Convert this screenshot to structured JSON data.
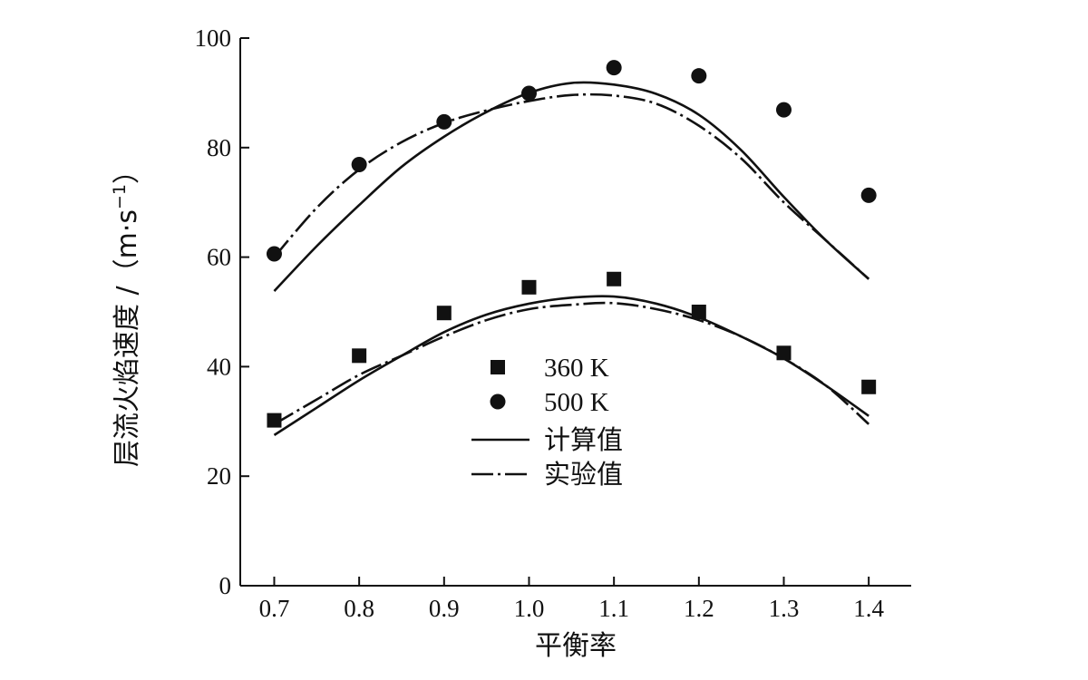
{
  "chart_data": {
    "type": "line",
    "title": "",
    "xlabel": "平衡率",
    "ylabel": {
      "main": "层流火焰速度 /（m·s",
      "sup": "−1",
      "end": "）"
    },
    "xlim": [
      0.66,
      1.45
    ],
    "ylim": [
      0,
      100
    ],
    "xticks": [
      "0.7",
      "0.8",
      "0.9",
      "1.0",
      "1.1",
      "1.2",
      "1.3",
      "1.4"
    ],
    "yticks": [
      "0",
      "20",
      "40",
      "60",
      "80",
      "100"
    ],
    "grid": false,
    "legend_position": "center",
    "legend": [
      {
        "label": "360 K",
        "kind": "square-marker"
      },
      {
        "label": "500 K",
        "kind": "circle-marker"
      },
      {
        "label": "计算值",
        "kind": "solid-line"
      },
      {
        "label": "实验值",
        "kind": "dash-dot-line"
      }
    ],
    "points": [
      {
        "name": "360 K",
        "marker": "square",
        "x": [
          0.7,
          0.8,
          0.9,
          1.0,
          1.1,
          1.2,
          1.3,
          1.4
        ],
        "y": [
          30.2,
          42.0,
          49.8,
          54.5,
          56.0,
          50.0,
          42.5,
          36.3
        ]
      },
      {
        "name": "500 K",
        "marker": "circle",
        "x": [
          0.7,
          0.8,
          0.9,
          1.0,
          1.1,
          1.2,
          1.3,
          1.4
        ],
        "y": [
          60.6,
          76.9,
          84.7,
          89.9,
          94.6,
          93.1,
          86.9,
          71.3
        ]
      }
    ],
    "curves": [
      {
        "name": "计算值",
        "style": "solid",
        "x": [
          0.7,
          0.75,
          0.8,
          0.85,
          0.9,
          0.95,
          1.0,
          1.05,
          1.1,
          1.15,
          1.2,
          1.25,
          1.3,
          1.35,
          1.4
        ],
        "y": [
          27.5,
          32.5,
          37.5,
          42.0,
          46.3,
          49.5,
          51.5,
          52.6,
          52.8,
          51.5,
          49.0,
          45.5,
          41.5,
          36.5,
          31.0
        ]
      },
      {
        "name": "实验值",
        "style": "dash-dot",
        "x": [
          0.7,
          0.75,
          0.8,
          0.85,
          0.9,
          0.95,
          1.0,
          1.05,
          1.1,
          1.15,
          1.2,
          1.25,
          1.3,
          1.35,
          1.4
        ],
        "y": [
          29.5,
          34.0,
          38.5,
          42.0,
          45.5,
          48.5,
          50.5,
          51.3,
          51.6,
          50.5,
          48.5,
          45.5,
          41.5,
          36.5,
          29.5
        ]
      },
      {
        "name": "计算值",
        "style": "solid",
        "x": [
          0.7,
          0.75,
          0.8,
          0.85,
          0.9,
          0.95,
          1.0,
          1.05,
          1.1,
          1.15,
          1.2,
          1.25,
          1.3,
          1.35,
          1.4
        ],
        "y": [
          53.8,
          62.0,
          69.5,
          76.5,
          82.0,
          86.5,
          90.0,
          91.8,
          91.5,
          89.8,
          86.0,
          79.5,
          71.0,
          63.0,
          56.0
        ]
      },
      {
        "name": "实验值",
        "style": "dash-dot",
        "x": [
          0.7,
          0.75,
          0.8,
          0.85,
          0.9,
          0.95,
          1.0,
          1.05,
          1.1,
          1.15,
          1.2,
          1.25,
          1.3,
          1.35,
          1.4
        ],
        "y": [
          60.0,
          69.0,
          76.0,
          81.0,
          84.5,
          86.8,
          88.5,
          89.6,
          89.5,
          88.0,
          84.0,
          78.0,
          70.0,
          63.0,
          56.0
        ]
      }
    ]
  }
}
